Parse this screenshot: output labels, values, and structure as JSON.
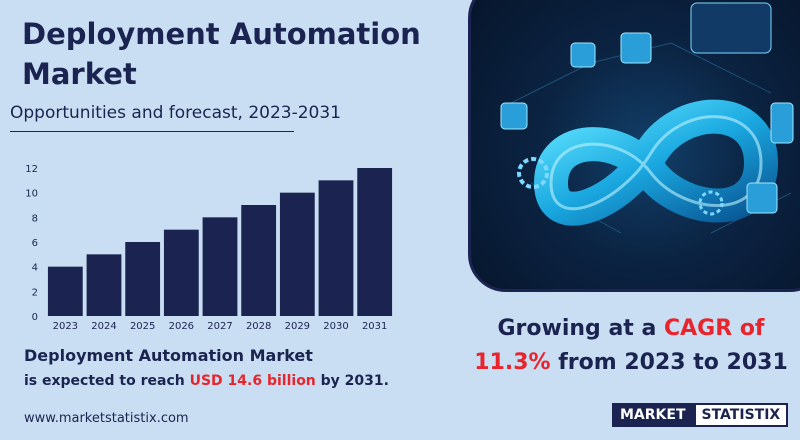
{
  "title": "Deployment Automation Market",
  "subtitle": "Opportunities and forecast, 2023-2031",
  "chart_data": {
    "type": "bar",
    "categories": [
      "2023",
      "2024",
      "2025",
      "2026",
      "2027",
      "2028",
      "2029",
      "2030",
      "2031"
    ],
    "values": [
      4,
      5,
      6,
      7,
      8,
      9,
      10,
      11,
      12
    ],
    "yticks": [
      "0",
      "2",
      "4",
      "6",
      "8",
      "10",
      "12"
    ],
    "ylim": [
      0,
      12
    ],
    "grid": false,
    "bar_color": "#1b2450"
  },
  "footnote": {
    "line1": "Deployment Automation Market",
    "line2_prefix": "is expected to reach",
    "line2_value": "USD 14.6 billion",
    "line2_suffix": "by 2031."
  },
  "growth": {
    "prefix": "Growing at a",
    "cagr_label": "CAGR of",
    "cagr_value": "11.3%",
    "suffix": "from 2023 to 2031"
  },
  "website": "www.marketstatistix.com",
  "logo": {
    "word1": "MARKET",
    "word2": "STATISTIX"
  },
  "image": {
    "icon": "infinity-devops-icon"
  },
  "colors": {
    "navy": "#1b2450",
    "accent": "#e8242c",
    "background": "#c9def2",
    "glow": "#22c4f0"
  }
}
